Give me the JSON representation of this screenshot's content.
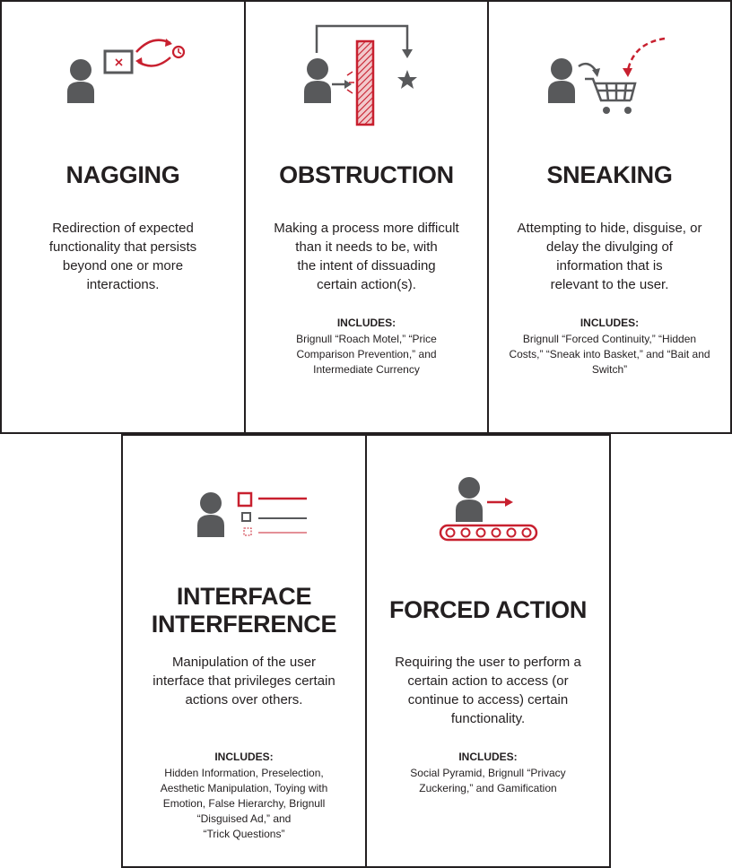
{
  "colors": {
    "accent": "#c8202f",
    "icon_gray": "#58595b",
    "text": "#231f20",
    "border": "#231f20"
  },
  "cards": [
    {
      "title": "NAGGING",
      "icon": "person-screen-redirect-icon",
      "description": "Redirection of expected\nfunctionality that persists\nbeyond one or more\ninteractions.",
      "includes_label": "",
      "includes": ""
    },
    {
      "title": "OBSTRUCTION",
      "icon": "person-blocked-barrier-icon",
      "description": "Making a process more difficult\nthan it needs to be, with\nthe intent of dissuading\ncertain action(s).",
      "includes_label": "INCLUDES:",
      "includes": "Brignull “Roach Motel,” “Price\nComparison Prevention,” and\nIntermediate Currency"
    },
    {
      "title": "SNEAKING",
      "icon": "person-shopping-cart-icon",
      "description": "Attempting to hide, disguise, or\ndelay the divulging of\ninformation that is\nrelevant to the user.",
      "includes_label": "INCLUDES:",
      "includes": "Brignull “Forced Continuity,” “Hidden\nCosts,” “Sneak into Basket,” and “Bait and\nSwitch”"
    },
    {
      "title": "INTERFACE\nINTERFERENCE",
      "icon": "person-checklist-icon",
      "description": "Manipulation of the user\ninterface that privileges certain\nactions over others.",
      "includes_label": "INCLUDES:",
      "includes": "Hidden Information, Preselection,\nAesthetic Manipulation, Toying with\nEmotion, False Hierarchy, Brignull\n“Disguised Ad,” and\n“Trick Questions”"
    },
    {
      "title": "FORCED ACTION",
      "icon": "person-conveyor-belt-icon",
      "description": "Requiring the user to perform a\ncertain action to access (or\ncontinue to access) certain\nfunctionality.",
      "includes_label": "INCLUDES:",
      "includes": "Social Pyramid, Brignull “Privacy\nZuckering,” and Gamification"
    }
  ]
}
